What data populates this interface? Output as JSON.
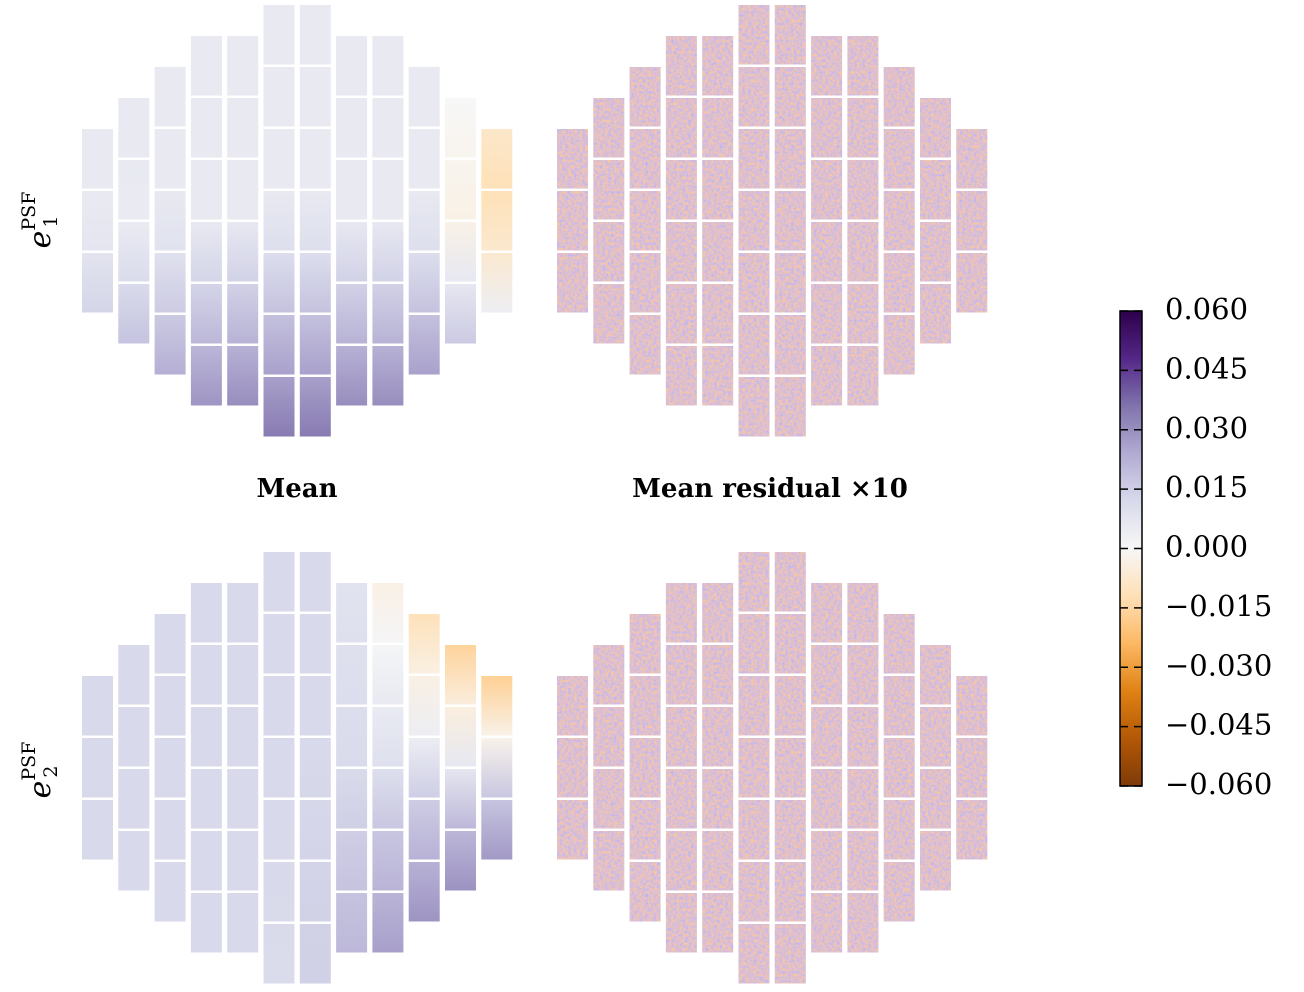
{
  "chart_data": {
    "type": "heatmap",
    "rows": [
      {
        "label": {
          "base": "e",
          "sup": "PSF",
          "sub": "1"
        }
      },
      {
        "label": {
          "base": "e",
          "sup": "PSF",
          "sub": "2"
        }
      }
    ],
    "columns": [
      "Mean",
      "Mean residual ×10"
    ],
    "colorbar": {
      "lim": [
        -0.06,
        0.06
      ],
      "colors": [
        "#7f3b08",
        "#b35806",
        "#e08214",
        "#fdb863",
        "#fee0b6",
        "#f7f7f7",
        "#d8daeb",
        "#b2abd2",
        "#8073ac",
        "#542788",
        "#2d004b"
      ],
      "ticks": [
        {
          "value": 0.06,
          "label": "0.060"
        },
        {
          "value": 0.045,
          "label": "0.045"
        },
        {
          "value": 0.03,
          "label": "0.030"
        },
        {
          "value": 0.015,
          "label": "0.015"
        },
        {
          "value": 0,
          "label": "0.000"
        },
        {
          "value": -0.015,
          "label": "−0.015"
        },
        {
          "value": -0.03,
          "label": "−0.030"
        },
        {
          "value": -0.045,
          "label": "−0.045"
        },
        {
          "value": -0.06,
          "label": "−0.060"
        }
      ]
    }
  }
}
